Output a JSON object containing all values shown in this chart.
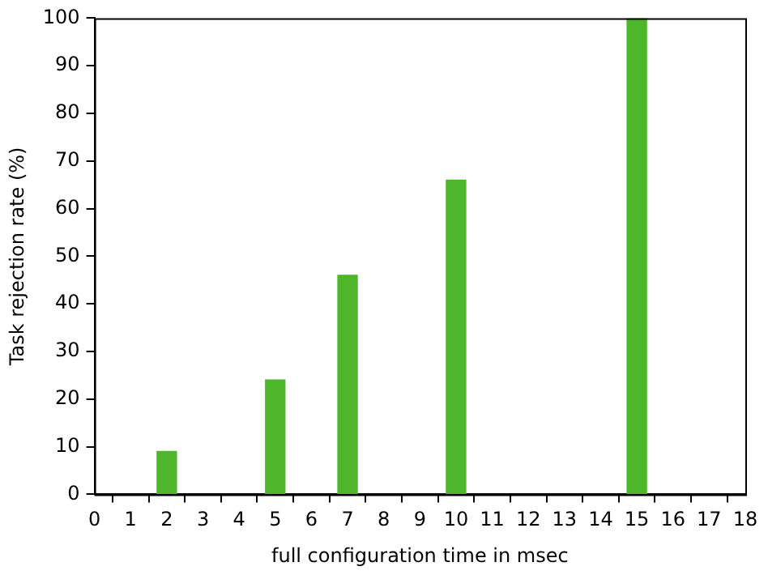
{
  "chart_data": {
    "type": "bar",
    "xlabel": "full configuration time in msec",
    "ylabel": "Task rejection rate (%)",
    "x": [
      2,
      5,
      7,
      10,
      15
    ],
    "values": [
      9,
      24,
      46,
      66,
      100
    ],
    "color": "#4db62a",
    "xlim": [
      0,
      18
    ],
    "xticks": [
      0,
      1,
      2,
      3,
      4,
      5,
      6,
      7,
      8,
      9,
      10,
      11,
      12,
      13,
      14,
      15,
      16,
      17,
      18
    ],
    "ylim": [
      0,
      100
    ],
    "yticks": [
      0,
      10,
      20,
      30,
      40,
      50,
      60,
      70,
      80,
      90,
      100
    ],
    "grid": false,
    "legend": false
  }
}
